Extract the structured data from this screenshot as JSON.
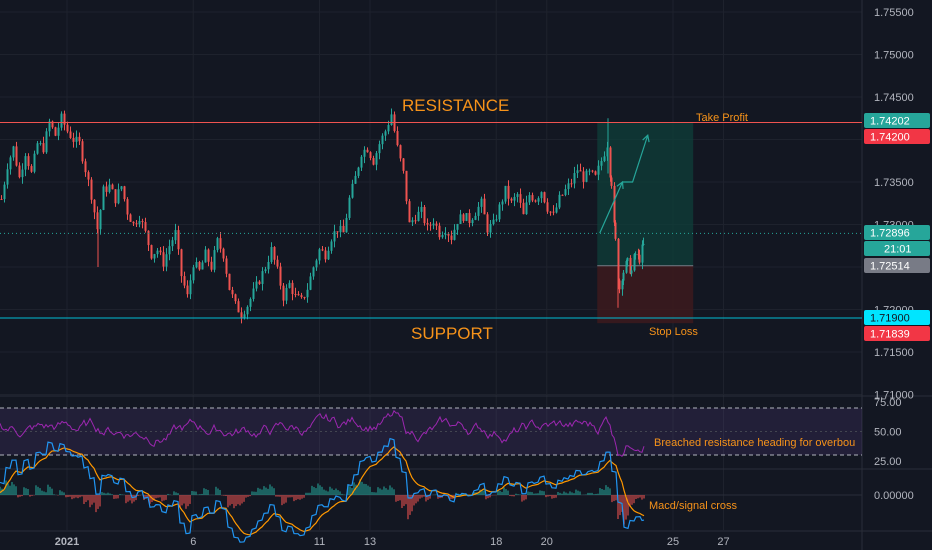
{
  "chart_data": [
    {
      "type": "candlestick",
      "pane": "price",
      "ylim": [
        1.71,
        1.756
      ],
      "yticks": [
        "1.75500",
        "1.75000",
        "1.74500",
        "1.73500",
        "1.73000",
        "1.72000",
        "1.71500",
        "1.71000"
      ],
      "xticks": [
        "2021",
        "6",
        "11",
        "13",
        "18",
        "20",
        "25",
        "27"
      ],
      "resistance": 1.742,
      "support": 1.719,
      "close_path": [
        [
          0,
          1.733
        ],
        [
          6,
          1.737
        ],
        [
          12,
          1.739
        ],
        [
          18,
          1.7355
        ],
        [
          24,
          1.7385
        ],
        [
          30,
          1.736
        ],
        [
          36,
          1.7395
        ],
        [
          42,
          1.739
        ],
        [
          48,
          1.742
        ],
        [
          54,
          1.7405
        ],
        [
          60,
          1.7425
        ],
        [
          66,
          1.741
        ],
        [
          72,
          1.74
        ],
        [
          78,
          1.7395
        ],
        [
          84,
          1.7365
        ],
        [
          90,
          1.7335
        ],
        [
          96,
          1.7295
        ],
        [
          102,
          1.734
        ],
        [
          108,
          1.7345
        ],
        [
          114,
          1.733
        ],
        [
          120,
          1.7345
        ],
        [
          126,
          1.7315
        ],
        [
          132,
          1.73
        ],
        [
          138,
          1.731
        ],
        [
          144,
          1.729
        ],
        [
          150,
          1.7265
        ],
        [
          156,
          1.727
        ],
        [
          162,
          1.7255
        ],
        [
          168,
          1.7275
        ],
        [
          174,
          1.729
        ],
        [
          180,
          1.724
        ],
        [
          186,
          1.7215
        ],
        [
          192,
          1.7255
        ],
        [
          198,
          1.7245
        ],
        [
          204,
          1.7265
        ],
        [
          210,
          1.725
        ],
        [
          216,
          1.728
        ],
        [
          222,
          1.7265
        ],
        [
          228,
          1.7225
        ],
        [
          234,
          1.7205
        ],
        [
          240,
          1.7195
        ],
        [
          246,
          1.7205
        ],
        [
          252,
          1.722
        ],
        [
          258,
          1.7235
        ],
        [
          264,
          1.725
        ],
        [
          270,
          1.727
        ],
        [
          276,
          1.7245
        ],
        [
          282,
          1.7215
        ],
        [
          288,
          1.723
        ],
        [
          294,
          1.7215
        ],
        [
          300,
          1.721
        ],
        [
          306,
          1.7225
        ],
        [
          312,
          1.725
        ],
        [
          318,
          1.727
        ],
        [
          324,
          1.7265
        ],
        [
          330,
          1.7285
        ],
        [
          336,
          1.7295
        ],
        [
          342,
          1.729
        ],
        [
          348,
          1.733
        ],
        [
          354,
          1.7355
        ],
        [
          360,
          1.7385
        ],
        [
          366,
          1.739
        ],
        [
          372,
          1.7375
        ],
        [
          378,
          1.7395
        ],
        [
          384,
          1.741
        ],
        [
          390,
          1.743
        ],
        [
          396,
          1.739
        ],
        [
          402,
          1.736
        ],
        [
          408,
          1.73
        ],
        [
          414,
          1.731
        ],
        [
          420,
          1.7315
        ],
        [
          426,
          1.7295
        ],
        [
          432,
          1.7305
        ],
        [
          438,
          1.729
        ],
        [
          444,
          1.7295
        ],
        [
          450,
          1.7285
        ],
        [
          456,
          1.7305
        ],
        [
          462,
          1.731
        ],
        [
          468,
          1.7305
        ],
        [
          474,
          1.7315
        ],
        [
          480,
          1.7325
        ],
        [
          486,
          1.7295
        ],
        [
          492,
          1.73
        ],
        [
          498,
          1.732
        ],
        [
          504,
          1.734
        ],
        [
          510,
          1.7325
        ],
        [
          516,
          1.7335
        ],
        [
          522,
          1.731
        ],
        [
          528,
          1.7335
        ],
        [
          534,
          1.733
        ],
        [
          540,
          1.734
        ],
        [
          546,
          1.732
        ],
        [
          552,
          1.731
        ],
        [
          558,
          1.733
        ],
        [
          564,
          1.734
        ],
        [
          570,
          1.735
        ],
        [
          576,
          1.7365
        ],
        [
          582,
          1.7355
        ],
        [
          588,
          1.736
        ],
        [
          594,
          1.7355
        ],
        [
          600,
          1.7375
        ],
        [
          606,
          1.7395
        ],
        [
          610,
          1.735
        ],
        [
          614,
          1.728
        ],
        [
          618,
          1.7225
        ],
        [
          622,
          1.7245
        ],
        [
          626,
          1.7255
        ],
        [
          630,
          1.7245
        ],
        [
          634,
          1.7265
        ],
        [
          638,
          1.726
        ],
        [
          642,
          1.7275
        ],
        [
          645,
          1.729
        ]
      ],
      "position": {
        "entry": 1.72514,
        "take_profit": 1.74202,
        "stop_loss": 1.71839,
        "x_start": 22.0,
        "x_end": 25.8
      },
      "projection": [
        [
          22.1,
          1.729
        ],
        [
          23.0,
          1.735
        ],
        [
          23.4,
          1.735
        ],
        [
          24.0,
          1.7405
        ]
      ],
      "price_labels": {
        "take_profit": "1.74202",
        "resistance": "1.74200",
        "last": "1.72896",
        "countdown": "21:01",
        "entry": "1.72514",
        "support": "1.71900",
        "stop_loss": "1.71839"
      },
      "annotations": {
        "resistance": "RESISTANCE",
        "support": "SUPPORT",
        "take_profit": "Take Profit",
        "stop_loss": "Stop Loss"
      }
    },
    {
      "type": "line",
      "pane": "rsi",
      "ylim": [
        20,
        80
      ],
      "yticks": [
        "75.00",
        "50.00",
        "25.00"
      ],
      "bands": [
        30,
        70
      ],
      "annotation": "Breached resistance heading for overbou",
      "note": "RSI oscillates between 30 and 70, spike near 70 around the 13th, dip below 30 around the 21st"
    },
    {
      "type": "line",
      "pane": "macd",
      "yticks": [
        "0.00000"
      ],
      "annotation": "Macd/signal cross",
      "series": [
        {
          "name": "",
          "color": "#2196f3"
        },
        {
          "name": "",
          "color": "#ff9800"
        }
      ]
    }
  ],
  "colors": {
    "background": "#131722",
    "up": "#26a69a",
    "down": "#ef5350",
    "resistance": "#ef5350",
    "support": "#00bcd4",
    "annotation": "#f7931a",
    "rsi": "#9c27b0"
  }
}
